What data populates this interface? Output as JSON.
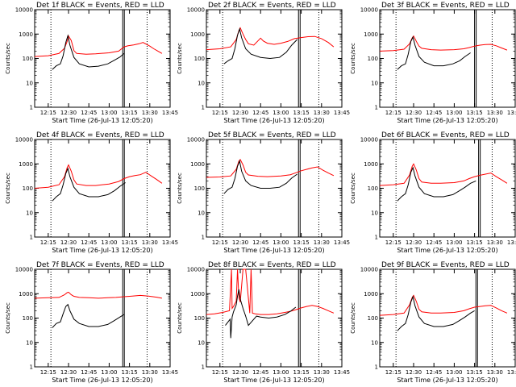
{
  "figure": {
    "x_tick_labels": [
      "12:15",
      "12:30",
      "12:45",
      "13:00",
      "13:15",
      "13:30",
      "13:45"
    ],
    "y_tick_labels": [
      "1",
      "10",
      "100",
      "1000",
      "10000"
    ],
    "ylabel": "Counts/sec",
    "xlabel": "Start Time (26-Jul-13 12:05:20)"
  },
  "chart_data": [
    {
      "type": "line",
      "title": "Det 1f BLACK = Events, RED = LLD",
      "xlim_min": [
        0,
        100
      ],
      "ylog": true,
      "ylim": [
        1,
        10000
      ],
      "xlabel": "Start Time (26-Jul-13 12:05:20)",
      "ylabel": "Counts/sec",
      "vlines_dotted_min": [
        12,
        83
      ],
      "vline_solid_min": [
        65
      ],
      "series": [
        {
          "name": "RED = LLD",
          "color": "#ff0000",
          "x": [
            0,
            10,
            18,
            22,
            24,
            25,
            27,
            29,
            31,
            38,
            45,
            55,
            62,
            66,
            69,
            73,
            77,
            80,
            85,
            88,
            91,
            94
          ],
          "y": [
            120,
            130,
            160,
            260,
            500,
            830,
            540,
            210,
            160,
            150,
            155,
            170,
            200,
            300,
            330,
            360,
            400,
            450,
            320,
            250,
            200,
            160
          ]
        },
        {
          "name": "BLACK = Events",
          "color": "#000000",
          "x": [
            13,
            16,
            19,
            21,
            23,
            24.5,
            26,
            29,
            33,
            40,
            47,
            54,
            59,
            63,
            66
          ],
          "y": [
            35,
            50,
            60,
            130,
            450,
            860,
            350,
            110,
            60,
            45,
            48,
            60,
            85,
            115,
            160
          ]
        }
      ]
    },
    {
      "type": "line",
      "title": "Det 2f BLACK = Events, RED = LLD",
      "xlim_min": [
        0,
        100
      ],
      "ylog": true,
      "ylim": [
        1,
        10000
      ],
      "xlabel": "Start Time (26-Jul-13 12:05:20)",
      "ylabel": "Counts/sec",
      "vlines_dotted_min": [
        12,
        83
      ],
      "vline_solid_min": [
        68
      ],
      "series": [
        {
          "name": "RED = LLD",
          "color": "#ff0000",
          "x": [
            0,
            10,
            18,
            22,
            24,
            25,
            27,
            29,
            31,
            35,
            38,
            40,
            42,
            45,
            50,
            55,
            60,
            65,
            70,
            75,
            80,
            85,
            90,
            94
          ],
          "y": [
            230,
            250,
            300,
            600,
            1400,
            1800,
            1000,
            600,
            400,
            350,
            520,
            680,
            520,
            420,
            380,
            420,
            500,
            650,
            720,
            780,
            800,
            650,
            450,
            300
          ]
        },
        {
          "name": "BLACK = Events",
          "color": "#000000",
          "x": [
            13,
            16,
            19,
            21,
            23,
            24.5,
            26,
            29,
            33,
            40,
            47,
            54,
            59,
            63,
            67
          ],
          "y": [
            60,
            80,
            100,
            250,
            900,
            1600,
            700,
            250,
            150,
            110,
            100,
            110,
            180,
            350,
            600
          ]
        }
      ]
    },
    {
      "type": "line",
      "title": "Det 3f BLACK = Events, RED = LLD",
      "xlim_min": [
        0,
        100
      ],
      "ylog": true,
      "ylim": [
        1,
        10000
      ],
      "xlabel": "Start Time (26-Jul-13 12:05:20)",
      "ylabel": "Counts/sec",
      "vlines_dotted_min": [
        12,
        83
      ],
      "vline_solid_min": [
        70
      ],
      "series": [
        {
          "name": "RED = LLD",
          "color": "#ff0000",
          "x": [
            0,
            10,
            18,
            22,
            24,
            25,
            27,
            29,
            31,
            38,
            45,
            55,
            62,
            66,
            70,
            74,
            78,
            82,
            86,
            90,
            94
          ],
          "y": [
            200,
            210,
            240,
            400,
            700,
            830,
            500,
            320,
            260,
            230,
            220,
            230,
            250,
            280,
            320,
            350,
            370,
            380,
            330,
            270,
            220
          ]
        },
        {
          "name": "BLACK = Events",
          "color": "#000000",
          "x": [
            13,
            16,
            19,
            21,
            23,
            24.5,
            26,
            29,
            33,
            40,
            47,
            54,
            59,
            63,
            67
          ],
          "y": [
            35,
            50,
            60,
            150,
            500,
            750,
            350,
            120,
            70,
            50,
            50,
            60,
            80,
            120,
            170
          ]
        }
      ]
    },
    {
      "type": "line",
      "title": "Det 4f BLACK = Events, RED = LLD",
      "xlim_min": [
        0,
        100
      ],
      "ylog": true,
      "ylim": [
        1,
        10000
      ],
      "xlabel": "Start Time (26-Jul-13 12:05:20)",
      "ylabel": "Counts/sec",
      "vlines_dotted_min": [
        12,
        83
      ],
      "vline_solid_min": [
        65
      ],
      "series": [
        {
          "name": "RED = LLD",
          "color": "#ff0000",
          "x": [
            0,
            10,
            18,
            22,
            24,
            25,
            27,
            29,
            31,
            38,
            45,
            55,
            62,
            66,
            70,
            74,
            78,
            82,
            86,
            90,
            94
          ],
          "y": [
            100,
            110,
            140,
            300,
            700,
            900,
            500,
            220,
            150,
            130,
            130,
            150,
            190,
            250,
            300,
            330,
            360,
            450,
            320,
            230,
            160
          ]
        },
        {
          "name": "BLACK = Events",
          "color": "#000000",
          "x": [
            13,
            16,
            19,
            21,
            23,
            24.5,
            26,
            29,
            33,
            40,
            47,
            54,
            59,
            63,
            67
          ],
          "y": [
            30,
            45,
            60,
            140,
            400,
            650,
            300,
            110,
            60,
            45,
            45,
            55,
            80,
            120,
            170
          ]
        }
      ]
    },
    {
      "type": "line",
      "title": "Det 5f BLACK = Events, RED = LLD",
      "xlim_min": [
        0,
        100
      ],
      "ylog": true,
      "ylim": [
        1,
        10000
      ],
      "xlabel": "Start Time (26-Jul-13 12:05:20)",
      "ylabel": "Counts/sec",
      "vlines_dotted_min": [
        12,
        83
      ],
      "vline_solid_min": [
        68
      ],
      "series": [
        {
          "name": "RED = LLD",
          "color": "#ff0000",
          "x": [
            0,
            10,
            18,
            22,
            24,
            25,
            27,
            29,
            31,
            38,
            45,
            55,
            62,
            66,
            70,
            74,
            78,
            82,
            86,
            90,
            94
          ],
          "y": [
            280,
            290,
            320,
            600,
            1300,
            1500,
            900,
            450,
            350,
            310,
            300,
            320,
            360,
            430,
            520,
            600,
            680,
            750,
            550,
            420,
            330
          ]
        },
        {
          "name": "BLACK = Events",
          "color": "#000000",
          "x": [
            13,
            16,
            19,
            21,
            23,
            24.5,
            26,
            29,
            33,
            40,
            47,
            54,
            59,
            63,
            67
          ],
          "y": [
            60,
            90,
            110,
            250,
            800,
            1300,
            500,
            200,
            130,
            100,
            100,
            110,
            160,
            260,
            380
          ]
        }
      ]
    },
    {
      "type": "line",
      "title": "Det 6f BLACK = Events, RED = LLD",
      "xlim_min": [
        0,
        100
      ],
      "ylog": true,
      "ylim": [
        1,
        10000
      ],
      "xlabel": "Start Time (26-Jul-13 12:05:20)",
      "ylabel": "Counts/sec",
      "vlines_dotted_min": [
        12,
        83
      ],
      "vline_solid_min": [
        73
      ],
      "series": [
        {
          "name": "RED = LLD",
          "color": "#ff0000",
          "x": [
            0,
            10,
            18,
            22,
            24,
            25,
            27,
            29,
            31,
            38,
            45,
            55,
            62,
            66,
            70,
            74,
            78,
            82,
            86,
            90,
            94
          ],
          "y": [
            130,
            140,
            160,
            350,
            800,
            1000,
            550,
            250,
            180,
            160,
            160,
            170,
            200,
            250,
            300,
            340,
            380,
            420,
            300,
            220,
            160
          ]
        },
        {
          "name": "BLACK = Events",
          "color": "#000000",
          "x": [
            13,
            16,
            19,
            21,
            23,
            24.5,
            26,
            29,
            33,
            40,
            47,
            54,
            59,
            63,
            67,
            71
          ],
          "y": [
            30,
            45,
            60,
            140,
            450,
            700,
            320,
            110,
            60,
            45,
            45,
            55,
            80,
            110,
            160,
            200
          ]
        }
      ]
    },
    {
      "type": "line",
      "title": "Det 7f BLACK = Events, RED = LLD",
      "xlim_min": [
        0,
        100
      ],
      "ylog": true,
      "ylim": [
        1,
        10000
      ],
      "xlabel": "Start Time (26-Jul-13 12:05:20)",
      "ylabel": "Counts/sec",
      "vlines_dotted_min": [
        12,
        83
      ],
      "vline_solid_min": [
        65
      ],
      "series": [
        {
          "name": "RED = LLD",
          "color": "#ff0000",
          "x": [
            0,
            10,
            18,
            22,
            24,
            25,
            27,
            29,
            33,
            40,
            47,
            54,
            60,
            66,
            72,
            78,
            84,
            90,
            94
          ],
          "y": [
            650,
            680,
            700,
            900,
            1100,
            1150,
            900,
            780,
            700,
            680,
            650,
            680,
            700,
            750,
            800,
            850,
            800,
            720,
            650
          ]
        },
        {
          "name": "BLACK = Events",
          "color": "#000000",
          "x": [
            13,
            16,
            19,
            21,
            23,
            24.5,
            26,
            29,
            33,
            40,
            47,
            54,
            59,
            63,
            66
          ],
          "y": [
            40,
            60,
            70,
            150,
            300,
            360,
            200,
            90,
            60,
            45,
            45,
            55,
            80,
            110,
            140
          ]
        }
      ]
    },
    {
      "type": "line",
      "title": "Det 8f BLACK = Events, RED = LLD",
      "xlim_min": [
        0,
        100
      ],
      "ylog": true,
      "ylim": [
        1,
        10000
      ],
      "xlabel": "Start Time (26-Jul-13 12:05:20)",
      "ylabel": "Counts/sec",
      "vlines_dotted_min": [
        12,
        83
      ],
      "vline_solid_min": [
        68
      ],
      "series": [
        {
          "name": "RED = LLD",
          "color": "#ff0000",
          "x": [
            0,
            6,
            12,
            17,
            18.5,
            19,
            20,
            22,
            23,
            24,
            25,
            27,
            29,
            32,
            33,
            34,
            36,
            40,
            46,
            52,
            58,
            62,
            66,
            70,
            74,
            78,
            82,
            86,
            90,
            94
          ],
          "y": [
            140,
            150,
            170,
            200,
            10000,
            250,
            300,
            500,
            10000,
            700,
            450,
            10000,
            10000,
            160,
            10000,
            160,
            150,
            140,
            140,
            150,
            170,
            190,
            220,
            260,
            300,
            330,
            300,
            250,
            200,
            160
          ]
        },
        {
          "name": "BLACK = Events",
          "color": "#000000",
          "x": [
            14,
            16,
            17.5,
            18,
            19,
            20,
            22,
            23,
            24,
            25,
            27,
            29,
            31,
            37,
            40,
            46,
            52,
            58,
            62,
            66
          ],
          "y": [
            50,
            70,
            90,
            15,
            110,
            180,
            350,
            800,
            1500,
            600,
            250,
            120,
            50,
            120,
            110,
            100,
            110,
            140,
            190,
            280
          ]
        }
      ]
    },
    {
      "type": "line",
      "title": "Det 9f BLACK = Events, RED = LLD",
      "xlim_min": [
        0,
        100
      ],
      "ylog": true,
      "ylim": [
        1,
        10000
      ],
      "xlabel": "Start Time (26-Jul-13 12:05:20)",
      "ylabel": "Counts/sec",
      "vlines_dotted_min": [
        12,
        83
      ],
      "vline_solid_min": [
        71
      ],
      "series": [
        {
          "name": "RED = LLD",
          "color": "#ff0000",
          "x": [
            0,
            10,
            18,
            22,
            24,
            25,
            27,
            29,
            31,
            38,
            45,
            55,
            62,
            66,
            70,
            74,
            78,
            82,
            86,
            90,
            94
          ],
          "y": [
            130,
            140,
            160,
            350,
            700,
            850,
            480,
            230,
            180,
            160,
            160,
            170,
            200,
            240,
            280,
            300,
            320,
            330,
            260,
            200,
            160
          ]
        },
        {
          "name": "BLACK = Events",
          "color": "#000000",
          "x": [
            13,
            16,
            19,
            21,
            23,
            24.5,
            26,
            29,
            33,
            40,
            47,
            54,
            59,
            63,
            67,
            70
          ],
          "y": [
            30,
            45,
            60,
            140,
            450,
            750,
            320,
            110,
            60,
            45,
            45,
            55,
            80,
            110,
            160,
            200
          ]
        }
      ]
    }
  ]
}
